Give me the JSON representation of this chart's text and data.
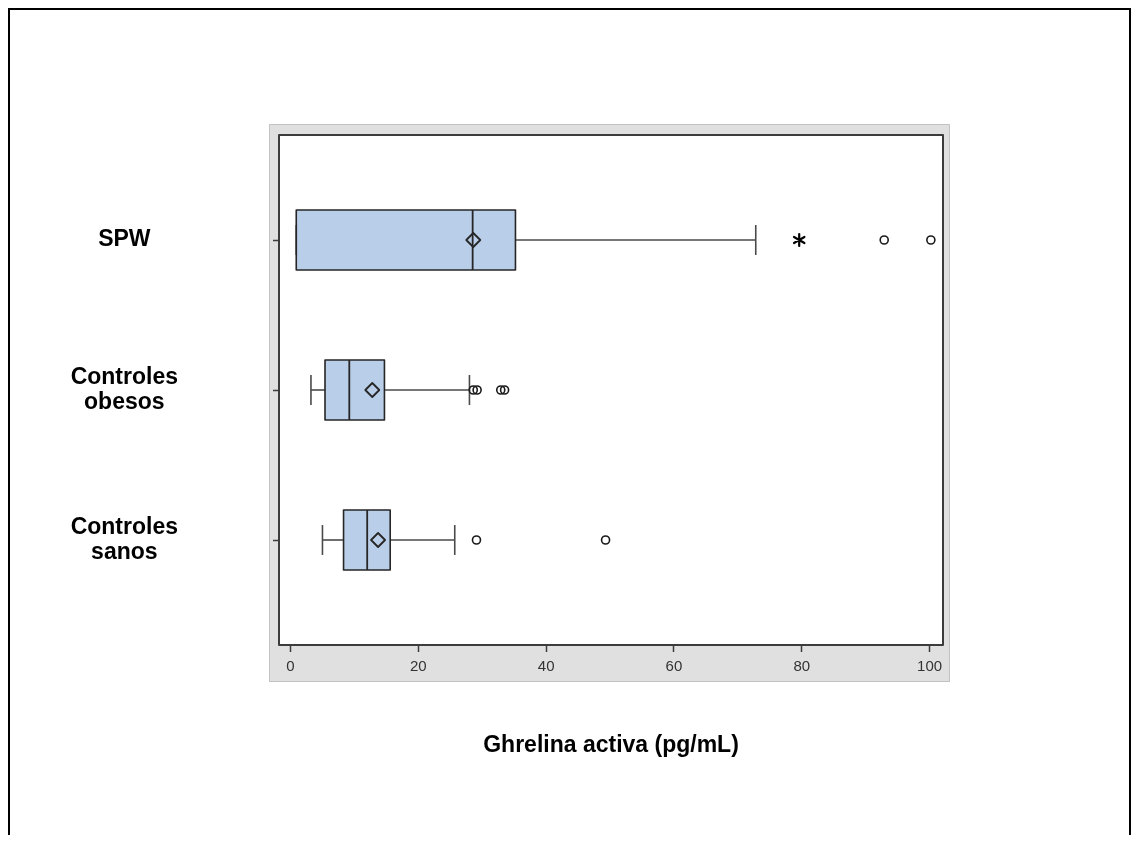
{
  "chart_data": {
    "type": "box",
    "orientation": "horizontal",
    "xlabel": "Ghrelina activa (pg/mL)",
    "categories": [
      "SPW",
      "Controles obesos",
      "Controles sanos"
    ],
    "xlim": [
      -1.8,
      102.1
    ],
    "xticks": [
      0,
      20,
      40,
      60,
      80,
      100
    ],
    "series": [
      {
        "type": "box",
        "color": "#b9cee8",
        "marker": "circle",
        "boxes": [
          {
            "low": 0.9,
            "q1": 0.9,
            "median": 28.5,
            "q3": 35.2,
            "high": 72.8,
            "mean": 28.6,
            "outliers": [
              92.9,
              100.2
            ]
          },
          {
            "low": 3.2,
            "q1": 5.4,
            "median": 9.2,
            "q3": 14.7,
            "high": 28.0,
            "mean": 12.8,
            "outliers": [
              28.6,
              29.2,
              32.9,
              33.5
            ]
          },
          {
            "low": 5.0,
            "q1": 8.3,
            "median": 12.0,
            "q3": 15.6,
            "high": 25.7,
            "mean": 13.7,
            "outliers": [
              29.1,
              49.3
            ]
          }
        ]
      },
      {
        "type": "scatter",
        "marker": "cross",
        "color": "#000000",
        "x": [
          "SPW"
        ],
        "values": [
          79.6
        ]
      }
    ]
  }
}
